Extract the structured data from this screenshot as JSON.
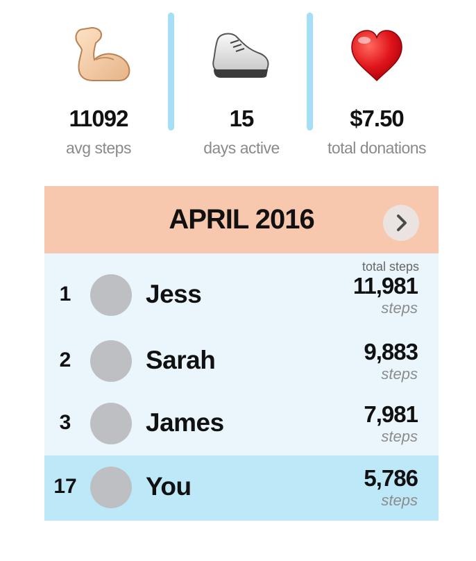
{
  "stats": [
    {
      "icon": "flexed-biceps-icon",
      "value": "11092",
      "label": "avg steps"
    },
    {
      "icon": "sneaker-icon",
      "value": "15",
      "label": "days active"
    },
    {
      "icon": "heart-icon",
      "value": "$7.50",
      "label": "total donations"
    }
  ],
  "leaderboard": {
    "title": "APRIL 2016",
    "next_icon": "chevron-right-icon",
    "column_header": "total steps",
    "rows": [
      {
        "rank": "1",
        "name": "Jess",
        "steps": "11,981",
        "unit": "steps"
      },
      {
        "rank": "2",
        "name": "Sarah",
        "steps": "9,883",
        "unit": "steps"
      },
      {
        "rank": "3",
        "name": "James",
        "steps": "7,981",
        "unit": "steps"
      },
      {
        "rank": "17",
        "name": "You",
        "steps": "5,786",
        "unit": "steps"
      }
    ]
  },
  "colors": {
    "divider": "#a4dff5",
    "header_bg": "#f7c7ae",
    "board_bg": "#eaf6fc",
    "highlight_row": "#bde8f8",
    "avatar": "#bebfc2"
  }
}
